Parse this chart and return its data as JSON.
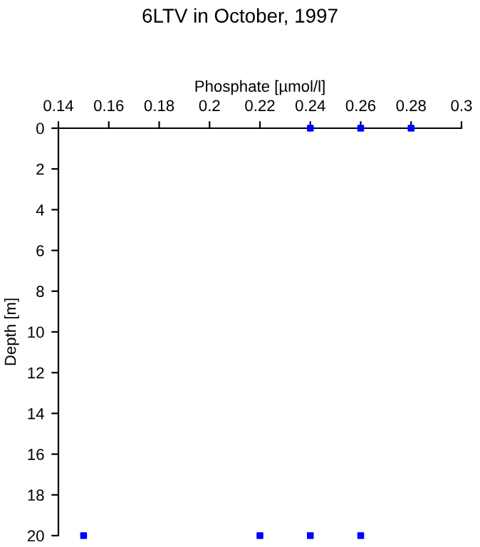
{
  "chart_data": {
    "type": "scatter",
    "title": "6LTV in October, 1997",
    "xlabel": "Phosphate [µmol/l]",
    "ylabel": "Depth [m]",
    "x": [
      0.24,
      0.26,
      0.28,
      0.15,
      0.22,
      0.24,
      0.26
    ],
    "values": [
      0,
      0,
      0,
      20,
      20,
      20,
      20
    ],
    "color": "#0000ff",
    "marker": "square",
    "xlim": [
      0.14,
      0.3
    ],
    "xticks": [
      0.14,
      0.16,
      0.18,
      0.2,
      0.22,
      0.24,
      0.26,
      0.28,
      0.3
    ],
    "ylim": [
      20,
      0
    ],
    "yticks": [
      0,
      2,
      4,
      6,
      8,
      10,
      12,
      14,
      16,
      18,
      20
    ],
    "grid": false,
    "legend": false
  }
}
